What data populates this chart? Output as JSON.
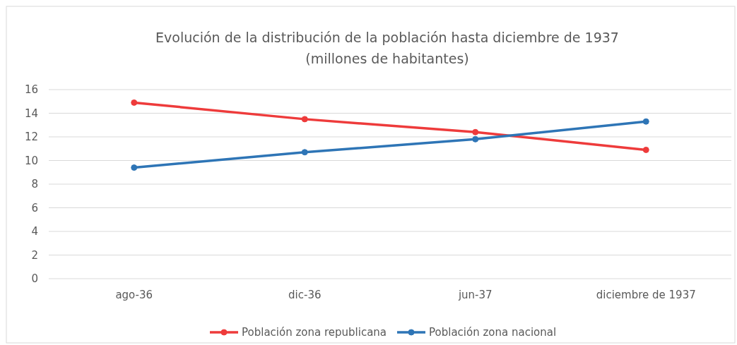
{
  "chart_data": {
    "type": "line",
    "title": "Evolución de la distribución de la población hasta diciembre de 1937",
    "subtitle": "(millones de habitantes)",
    "categories": [
      "ago-36",
      "dic-36",
      "jun-37",
      "diciembre de 1937"
    ],
    "series": [
      {
        "name": "Población zona republicana",
        "color": "#ee3b3b",
        "values": [
          14.9,
          13.5,
          12.4,
          10.9
        ]
      },
      {
        "name": "Población zona nacional",
        "color": "#2e75b6",
        "values": [
          9.4,
          10.7,
          11.8,
          13.3
        ]
      }
    ],
    "ylim": [
      0,
      16
    ],
    "yticks": [
      0,
      2,
      4,
      6,
      8,
      10,
      12,
      14,
      16
    ],
    "grid": "y",
    "legend": "bottom",
    "marker": "circle",
    "line_style": "solid"
  }
}
